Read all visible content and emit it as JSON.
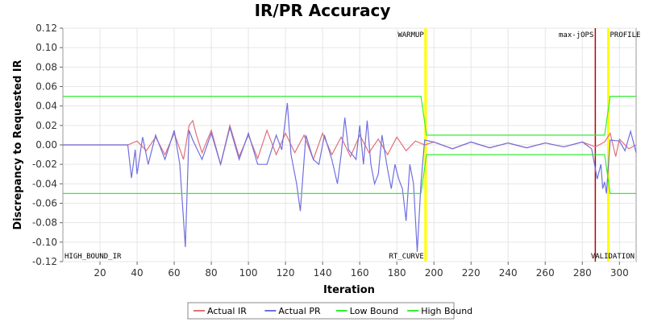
{
  "chart_data": {
    "type": "line",
    "title": "IR/PR Accuracy",
    "xlabel": "Iteration",
    "ylabel": "Discrepancy to Requested IR",
    "xlim": [
      0,
      309
    ],
    "ylim": [
      -0.12,
      0.12
    ],
    "x_ticks": [
      "20",
      "40",
      "60",
      "80",
      "100",
      "120",
      "140",
      "160",
      "180",
      "200",
      "220",
      "240",
      "260",
      "280",
      "300"
    ],
    "y_ticks": [
      "0.12",
      "0.10",
      "0.08",
      "0.06",
      "0.04",
      "0.02",
      "0.00",
      "-0.02",
      "-0.04",
      "-0.06",
      "-0.08",
      "-0.10",
      "-0.12"
    ],
    "grid": true,
    "legend_position": "bottom",
    "markers": [
      {
        "label": "WARMUP",
        "x": 195.5,
        "color": "#ffff00",
        "side": "top"
      },
      {
        "label": "max-jOPS",
        "x": 287,
        "color": "#c00000",
        "side": "top"
      },
      {
        "label": "PROFILE",
        "x": 294,
        "color": "#ffff00",
        "side": "top"
      },
      {
        "label": "HIGH_BOUND_IR",
        "x": 0,
        "color": "#00cc00",
        "side": "bottom-left"
      },
      {
        "label": "RT_CURVE",
        "x": 195.5,
        "color": "#ffff00",
        "side": "bottom"
      },
      {
        "label": "VALIDATION",
        "x": 309,
        "color": "#00cc00",
        "side": "bottom"
      }
    ],
    "series": [
      {
        "name": "Actual IR",
        "color": "#e0707a",
        "points": [
          [
            0,
            0
          ],
          [
            35,
            0
          ],
          [
            40,
            0.004
          ],
          [
            45,
            -0.006
          ],
          [
            50,
            0.008
          ],
          [
            55,
            -0.01
          ],
          [
            60,
            0.012
          ],
          [
            65,
            -0.015
          ],
          [
            68,
            0.02
          ],
          [
            70,
            0.025
          ],
          [
            72,
            0.01
          ],
          [
            75,
            -0.008
          ],
          [
            80,
            0.015
          ],
          [
            85,
            -0.02
          ],
          [
            90,
            0.02
          ],
          [
            95,
            -0.012
          ],
          [
            100,
            0.01
          ],
          [
            105,
            -0.014
          ],
          [
            110,
            0.015
          ],
          [
            115,
            -0.01
          ],
          [
            120,
            0.012
          ],
          [
            125,
            -0.008
          ],
          [
            130,
            0.01
          ],
          [
            135,
            -0.015
          ],
          [
            140,
            0.012
          ],
          [
            145,
            -0.01
          ],
          [
            150,
            0.008
          ],
          [
            155,
            -0.012
          ],
          [
            160,
            0.01
          ],
          [
            165,
            -0.008
          ],
          [
            170,
            0.006
          ],
          [
            175,
            -0.01
          ],
          [
            180,
            0.008
          ],
          [
            185,
            -0.006
          ],
          [
            190,
            0.004
          ],
          [
            195,
            0
          ],
          [
            200,
            0.003
          ],
          [
            210,
            -0.004
          ],
          [
            220,
            0.003
          ],
          [
            230,
            -0.003
          ],
          [
            240,
            0.002
          ],
          [
            250,
            -0.003
          ],
          [
            260,
            0.002
          ],
          [
            270,
            -0.002
          ],
          [
            280,
            0.003
          ],
          [
            287,
            -0.002
          ],
          [
            292,
            0.003
          ],
          [
            295,
            0.012
          ],
          [
            298,
            -0.012
          ],
          [
            300,
            0.006
          ],
          [
            305,
            -0.004
          ],
          [
            309,
            0
          ]
        ]
      },
      {
        "name": "Actual PR",
        "color": "#7070e0",
        "points": [
          [
            0,
            0
          ],
          [
            35,
            0
          ],
          [
            37,
            -0.034
          ],
          [
            39,
            -0.005
          ],
          [
            40,
            -0.03
          ],
          [
            43,
            0.008
          ],
          [
            46,
            -0.02
          ],
          [
            50,
            0.01
          ],
          [
            55,
            -0.015
          ],
          [
            60,
            0.015
          ],
          [
            63,
            -0.02
          ],
          [
            66,
            -0.105
          ],
          [
            68,
            0.015
          ],
          [
            70,
            0.005
          ],
          [
            75,
            -0.015
          ],
          [
            80,
            0.012
          ],
          [
            85,
            -0.02
          ],
          [
            90,
            0.018
          ],
          [
            95,
            -0.015
          ],
          [
            100,
            0.012
          ],
          [
            105,
            -0.02
          ],
          [
            110,
            -0.02
          ],
          [
            115,
            0.01
          ],
          [
            118,
            -0.005
          ],
          [
            121,
            0.043
          ],
          [
            123,
            -0.01
          ],
          [
            126,
            -0.04
          ],
          [
            128,
            -0.068
          ],
          [
            131,
            0.01
          ],
          [
            135,
            -0.015
          ],
          [
            138,
            -0.02
          ],
          [
            141,
            0.01
          ],
          [
            145,
            -0.015
          ],
          [
            148,
            -0.04
          ],
          [
            150,
            -0.01
          ],
          [
            152,
            0.028
          ],
          [
            154,
            -0.005
          ],
          [
            158,
            -0.015
          ],
          [
            160,
            0.02
          ],
          [
            162,
            -0.02
          ],
          [
            164,
            0.025
          ],
          [
            166,
            -0.02
          ],
          [
            168,
            -0.04
          ],
          [
            170,
            -0.03
          ],
          [
            172,
            0.01
          ],
          [
            175,
            -0.025
          ],
          [
            177,
            -0.045
          ],
          [
            179,
            -0.02
          ],
          [
            181,
            -0.035
          ],
          [
            183,
            -0.045
          ],
          [
            185,
            -0.078
          ],
          [
            187,
            -0.02
          ],
          [
            189,
            -0.04
          ],
          [
            191,
            -0.11
          ],
          [
            193,
            -0.04
          ],
          [
            195,
            0.005
          ],
          [
            200,
            0.003
          ],
          [
            210,
            -0.004
          ],
          [
            220,
            0.003
          ],
          [
            230,
            -0.003
          ],
          [
            240,
            0.002
          ],
          [
            250,
            -0.003
          ],
          [
            260,
            0.002
          ],
          [
            270,
            -0.002
          ],
          [
            280,
            0.003
          ],
          [
            285,
            -0.004
          ],
          [
            288,
            -0.035
          ],
          [
            290,
            -0.02
          ],
          [
            291,
            -0.045
          ],
          [
            292,
            -0.038
          ],
          [
            293,
            -0.05
          ],
          [
            295,
            0.005
          ],
          [
            300,
            0.004
          ],
          [
            303,
            -0.006
          ],
          [
            306,
            0.014
          ],
          [
            309,
            -0.008
          ]
        ]
      },
      {
        "name": "Low Bound",
        "color": "#33ee33",
        "points": [
          [
            0,
            -0.05
          ],
          [
            193,
            -0.05
          ],
          [
            196,
            -0.01
          ],
          [
            292,
            -0.01
          ],
          [
            295,
            -0.05
          ],
          [
            309,
            -0.05
          ]
        ]
      },
      {
        "name": "High Bound",
        "color": "#33ee33",
        "points": [
          [
            0,
            0.05
          ],
          [
            193,
            0.05
          ],
          [
            196,
            0.01
          ],
          [
            292,
            0.01
          ],
          [
            295,
            0.05
          ],
          [
            309,
            0.05
          ]
        ]
      }
    ]
  }
}
